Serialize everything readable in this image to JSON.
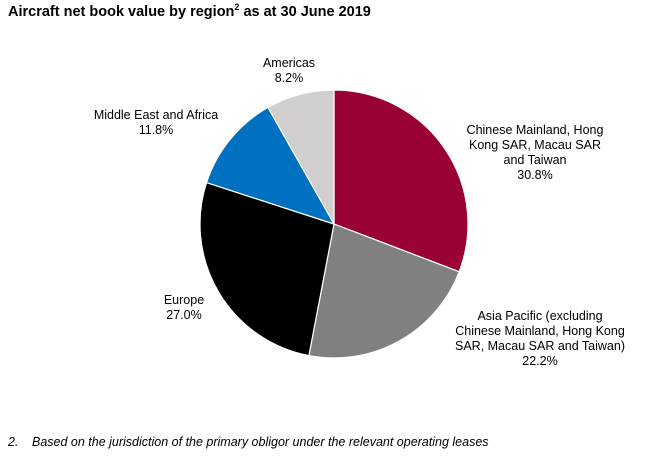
{
  "title": {
    "text": "Aircraft net book value by region",
    "superscript": "2",
    "suffix": " as at 30 June 2019"
  },
  "chart_data": {
    "type": "pie",
    "title": "Aircraft net book value by region² as at 30 June 2019",
    "start": "12 o'clock",
    "direction": "clockwise",
    "slices": [
      {
        "label_lines": [
          "Chinese Mainland, Hong",
          "Kong SAR, Macau SAR",
          "and Taiwan"
        ],
        "value_text": "30.8%",
        "value": 30.8,
        "color": "#990033"
      },
      {
        "label_lines": [
          "Asia Pacific (excluding",
          "Chinese Mainland, Hong Kong",
          "SAR, Macau SAR and Taiwan)"
        ],
        "value_text": "22.2%",
        "value": 22.2,
        "color": "#808080"
      },
      {
        "label_lines": [
          "Europe"
        ],
        "value_text": "27.0%",
        "value": 27.0,
        "color": "#000000"
      },
      {
        "label_lines": [
          "Middle East and Africa"
        ],
        "value_text": "11.8%",
        "value": 11.8,
        "color": "#0070c0"
      },
      {
        "label_lines": [
          "Americas"
        ],
        "value_text": "8.2%",
        "value": 8.2,
        "color": "#d0cecf"
      }
    ]
  },
  "footnote": {
    "number": "2.",
    "text": "Based on the jurisdiction of the primary obligor under the relevant operating leases"
  }
}
